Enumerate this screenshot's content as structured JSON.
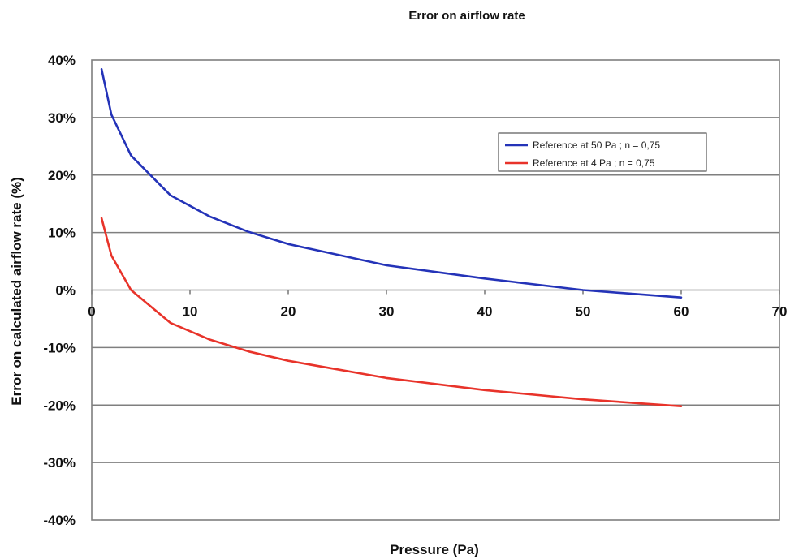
{
  "chart_data": {
    "type": "line",
    "title": "Error on airflow rate",
    "xlabel": "Pressure (Pa)",
    "ylabel": "Error on calculated airflow rate (%)",
    "xlim": [
      0,
      70
    ],
    "ylim": [
      -40,
      40
    ],
    "x_ticks": [
      "0",
      "10",
      "20",
      "30",
      "40",
      "50",
      "60",
      "70"
    ],
    "y_ticks": [
      "40%",
      "30%",
      "20%",
      "10%",
      "0%",
      "-10%",
      "-20%",
      "-30%",
      "-40%"
    ],
    "grid": true,
    "legend_position": "top-right",
    "series": [
      {
        "name": "Reference at 50 Pa ; n = 0,75",
        "color": "#2433b8",
        "x": [
          1,
          2,
          4,
          8,
          12,
          16,
          20,
          30,
          40,
          50,
          60
        ],
        "y": [
          38.4,
          30.5,
          23.4,
          16.5,
          12.8,
          10.1,
          8.0,
          4.3,
          2.0,
          0.0,
          -1.3
        ]
      },
      {
        "name": "Reference at 4 Pa ; n = 0,75",
        "color": "#e8332a",
        "x": [
          1,
          2,
          4,
          8,
          12,
          16,
          20,
          30,
          40,
          50,
          60
        ],
        "y": [
          12.5,
          6.0,
          0.0,
          -5.7,
          -8.6,
          -10.7,
          -12.3,
          -15.3,
          -17.4,
          -19.0,
          -20.2
        ]
      }
    ]
  }
}
